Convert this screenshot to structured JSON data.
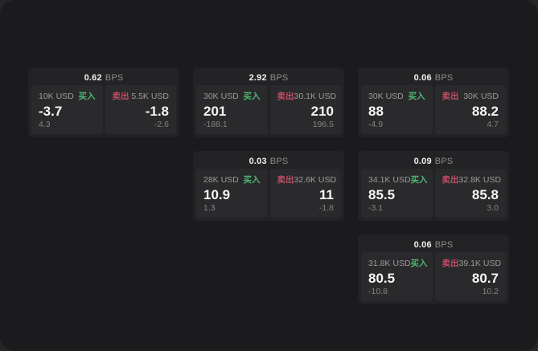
{
  "theme": {
    "panel_bg": "#1b1b1d",
    "card_bg": "#232325",
    "tile_bg": "#2a2a2c",
    "buy_color": "#4eb674",
    "sell_color": "#c14d64",
    "price_color": "#f5f5f5",
    "muted_color": "#9b9b9b"
  },
  "labels": {
    "bps_unit": "BPS",
    "buy": "买入",
    "sell": "卖出"
  },
  "cards": [
    {
      "row": 1,
      "col": 1,
      "bps": "0.62",
      "buy": {
        "notional": "10K USD",
        "price": "-3.7",
        "delta": "4.3"
      },
      "sell": {
        "notional": "5.5K USD",
        "price": "-1.8",
        "delta": "-2.6"
      }
    },
    {
      "row": 1,
      "col": 2,
      "bps": "2.92",
      "buy": {
        "notional": "30K USD",
        "price": "201",
        "delta": "-188.1"
      },
      "sell": {
        "notional": "30.1K USD",
        "price": "210",
        "delta": "196.5"
      }
    },
    {
      "row": 1,
      "col": 3,
      "bps": "0.06",
      "buy": {
        "notional": "30K USD",
        "price": "88",
        "delta": "-4.9"
      },
      "sell": {
        "notional": "30K USD",
        "price": "88.2",
        "delta": "4.7"
      }
    },
    {
      "row": 2,
      "col": 2,
      "bps": "0.03",
      "buy": {
        "notional": "28K USD",
        "price": "10.9",
        "delta": "1.3"
      },
      "sell": {
        "notional": "32.6K USD",
        "price": "11",
        "delta": "-1.8"
      }
    },
    {
      "row": 2,
      "col": 3,
      "bps": "0.09",
      "buy": {
        "notional": "34.1K USD",
        "price": "85.5",
        "delta": "-3.1"
      },
      "sell": {
        "notional": "32.8K USD",
        "price": "85.8",
        "delta": "3.0"
      }
    },
    {
      "row": 3,
      "col": 3,
      "bps": "0.06",
      "buy": {
        "notional": "31.8K USD",
        "price": "80.5",
        "delta": "-10.8"
      },
      "sell": {
        "notional": "39.1K USD",
        "price": "80.7",
        "delta": "10.2"
      }
    }
  ]
}
